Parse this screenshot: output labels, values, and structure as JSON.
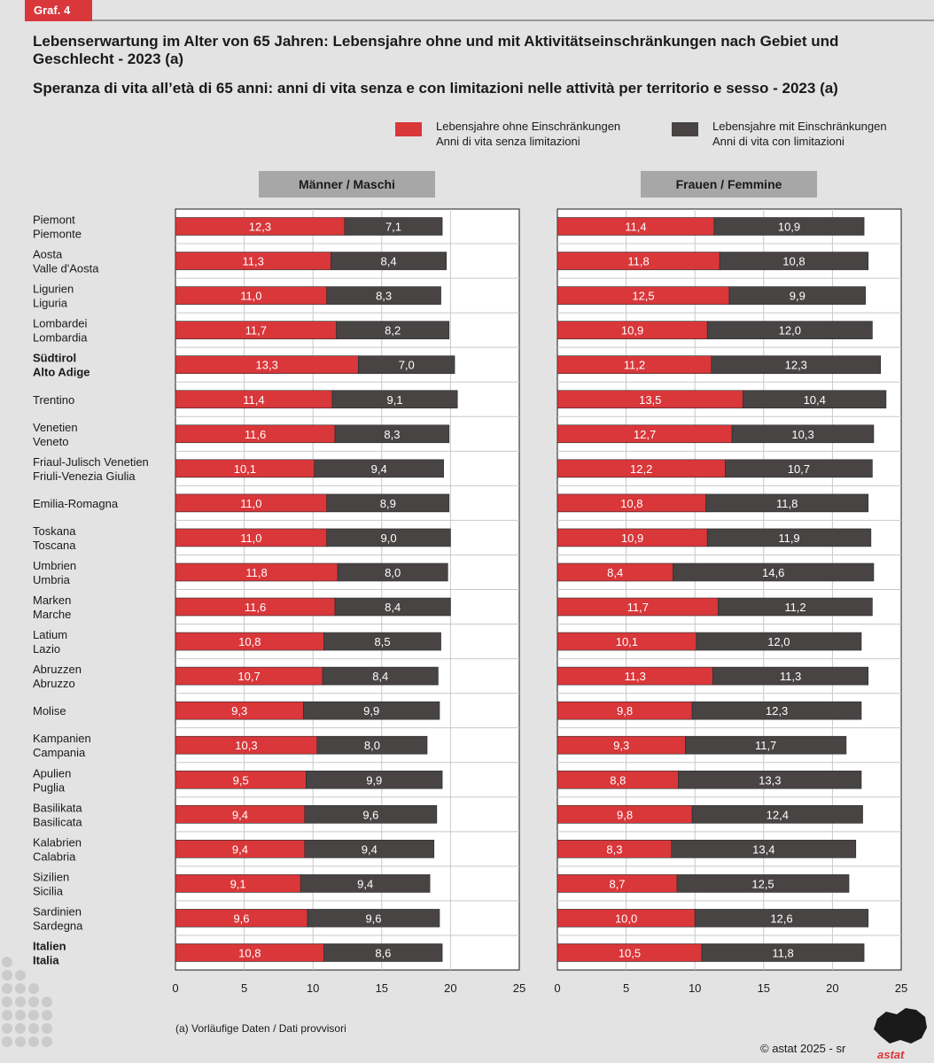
{
  "badge": "Graf. 4",
  "title_de": "Lebenserwartung im Alter von 65 Jahren: Lebensjahre ohne und mit Aktivitätseinschränkungen nach Gebiet und Geschlecht - 2023 (a)",
  "title_it": "Speranza di vita all’età di 65 anni: anni di vita senza e con limitazioni nelle attività per territorio e sesso - 2023 (a)",
  "legend": [
    {
      "line1": "Lebensjahre ohne Einschränkungen",
      "line2": "Anni di vita senza limitazioni",
      "color": "#d9373a"
    },
    {
      "line1": "Lebensjahre mit Einschränkungen",
      "line2": "Anni di vita con limitazioni",
      "color": "#484444"
    }
  ],
  "footnote": "(a)  Vorläufige Daten / Dati provvisori",
  "copyright": "©  astat 2025 - sr",
  "logo_text": "astat",
  "chart_data": {
    "type": "bar",
    "stacked": true,
    "orientation": "horizontal",
    "xlim": [
      0,
      25
    ],
    "xticks": [
      "0",
      "5",
      "10",
      "15",
      "20",
      "25"
    ],
    "colors": {
      "without": "#d9373a",
      "with": "#484444"
    },
    "categories": [
      {
        "de": "Piemont",
        "it": "Piemonte",
        "bold": false
      },
      {
        "de": "Aosta",
        "it": "Valle d'Aosta",
        "bold": false
      },
      {
        "de": "Ligurien",
        "it": "Liguria",
        "bold": false
      },
      {
        "de": "Lombardei",
        "it": "Lombardia",
        "bold": false
      },
      {
        "de": "Südtirol",
        "it": "Alto Adige",
        "bold": true
      },
      {
        "de": "Trentino",
        "it": "",
        "bold": false
      },
      {
        "de": "Venetien",
        "it": "Veneto",
        "bold": false
      },
      {
        "de": "Friaul-Julisch Venetien",
        "it": "Friuli-Venezia Giulia",
        "bold": false
      },
      {
        "de": "Emilia-Romagna",
        "it": "",
        "bold": false
      },
      {
        "de": "Toskana",
        "it": "Toscana",
        "bold": false
      },
      {
        "de": "Umbrien",
        "it": "Umbria",
        "bold": false
      },
      {
        "de": "Marken",
        "it": "Marche",
        "bold": false
      },
      {
        "de": "Latium",
        "it": "Lazio",
        "bold": false
      },
      {
        "de": "Abruzzen",
        "it": "Abruzzo",
        "bold": false
      },
      {
        "de": "Molise",
        "it": "",
        "bold": false
      },
      {
        "de": "Kampanien",
        "it": "Campania",
        "bold": false
      },
      {
        "de": "Apulien",
        "it": "Puglia",
        "bold": false
      },
      {
        "de": "Basilikata",
        "it": "Basilicata",
        "bold": false
      },
      {
        "de": "Kalabrien",
        "it": "Calabria",
        "bold": false
      },
      {
        "de": "Sizilien",
        "it": "Sicilia",
        "bold": false
      },
      {
        "de": "Sardinien",
        "it": "Sardegna",
        "bold": false
      },
      {
        "de": "Italien",
        "it": "Italia",
        "bold": true
      }
    ],
    "panels": [
      {
        "title": "Männer / Maschi",
        "without": [
          12.3,
          11.3,
          11.0,
          11.7,
          13.3,
          11.4,
          11.6,
          10.1,
          11.0,
          11.0,
          11.8,
          11.6,
          10.8,
          10.7,
          9.3,
          10.3,
          9.5,
          9.4,
          9.4,
          9.1,
          9.6,
          10.8
        ],
        "with": [
          7.1,
          8.4,
          8.3,
          8.2,
          7.0,
          9.1,
          8.3,
          9.4,
          8.9,
          9.0,
          8.0,
          8.4,
          8.5,
          8.4,
          9.9,
          8.0,
          9.9,
          9.6,
          9.4,
          9.4,
          9.6,
          8.6
        ],
        "without_labels": [
          "12,3",
          "11,3",
          "11,0",
          "11,7",
          "13,3",
          "11,4",
          "11,6",
          "10,1",
          "11,0",
          "11,0",
          "11,8",
          "11,6",
          "10,8",
          "10,7",
          "9,3",
          "10,3",
          "9,5",
          "9,4",
          "9,4",
          "9,1",
          "9,6",
          "10,8"
        ],
        "with_labels": [
          "7,1",
          "8,4",
          "8,3",
          "8,2",
          "7,0",
          "9,1",
          "8,3",
          "9,4",
          "8,9",
          "9,0",
          "8,0",
          "8,4",
          "8,5",
          "8,4",
          "9,9",
          "8,0",
          "9,9",
          "9,6",
          "9,4",
          "9,4",
          "9,6",
          "8,6"
        ]
      },
      {
        "title": "Frauen / Femmine",
        "without": [
          11.4,
          11.8,
          12.5,
          10.9,
          11.2,
          13.5,
          12.7,
          12.2,
          10.8,
          10.9,
          8.4,
          11.7,
          10.1,
          11.3,
          9.8,
          9.3,
          8.8,
          9.8,
          8.3,
          8.7,
          10.0,
          10.5
        ],
        "with": [
          10.9,
          10.8,
          9.9,
          12.0,
          12.3,
          10.4,
          10.3,
          10.7,
          11.8,
          11.9,
          14.6,
          11.2,
          12.0,
          11.3,
          12.3,
          11.7,
          13.3,
          12.4,
          13.4,
          12.5,
          12.6,
          11.8
        ],
        "without_labels": [
          "11,4",
          "11,8",
          "12,5",
          "10,9",
          "11,2",
          "13,5",
          "12,7",
          "12,2",
          "10,8",
          "10,9",
          "8,4",
          "11,7",
          "10,1",
          "11,3",
          "9,8",
          "9,3",
          "8,8",
          "9,8",
          "8,3",
          "8,7",
          "10,0",
          "10,5"
        ],
        "with_labels": [
          "10,9",
          "10,8",
          "9,9",
          "12,0",
          "12,3",
          "10,4",
          "10,3",
          "10,7",
          "11,8",
          "11,9",
          "14,6",
          "11,2",
          "12,0",
          "11,3",
          "12,3",
          "11,7",
          "13,3",
          "12,4",
          "13,4",
          "12,5",
          "12,6",
          "11,8"
        ]
      }
    ]
  }
}
